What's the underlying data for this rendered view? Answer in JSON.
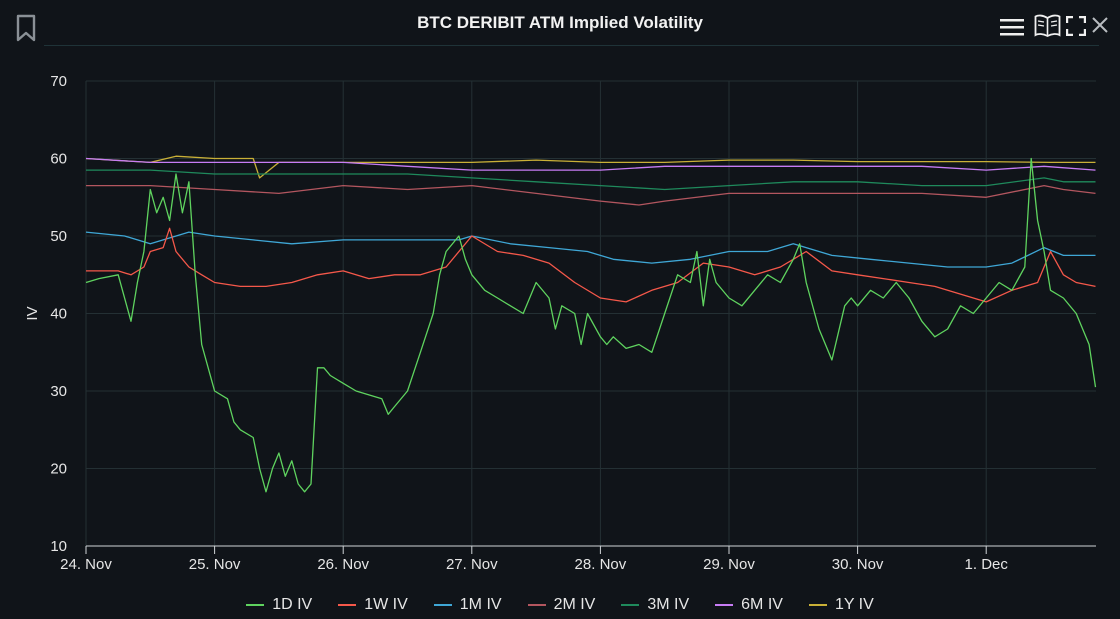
{
  "toolbar": {
    "title": "BTC DERIBIT ATM Implied Volatility",
    "icons": [
      "bookmark-icon",
      "menu-icon",
      "book-icon",
      "fullscreen-icon",
      "close-icon"
    ]
  },
  "chart_data": {
    "type": "line",
    "title": "BTC DERIBIT ATM Implied Volatility",
    "ylabel": "IV",
    "xlabel": "",
    "ylim": [
      10,
      70
    ],
    "yticks": [
      "10",
      "20",
      "30",
      "40",
      "50",
      "60",
      "70"
    ],
    "xlim": [
      0,
      7.85
    ],
    "xticks": [
      {
        "x": 0,
        "label": "24. Nov"
      },
      {
        "x": 1,
        "label": "25. Nov"
      },
      {
        "x": 2,
        "label": "26. Nov"
      },
      {
        "x": 3,
        "label": "27. Nov"
      },
      {
        "x": 4,
        "label": "28. Nov"
      },
      {
        "x": 5,
        "label": "29. Nov"
      },
      {
        "x": 6,
        "label": "30. Nov"
      },
      {
        "x": 7,
        "label": "1. Dec"
      }
    ],
    "grid": true,
    "legend_position": "bottom",
    "series": [
      {
        "name": "1D IV",
        "color": "#5fd35f",
        "x": [
          0,
          0.1,
          0.25,
          0.35,
          0.4,
          0.45,
          0.5,
          0.55,
          0.6,
          0.65,
          0.7,
          0.75,
          0.8,
          0.85,
          0.9,
          1,
          1.1,
          1.15,
          1.2,
          1.3,
          1.35,
          1.4,
          1.45,
          1.5,
          1.55,
          1.6,
          1.65,
          1.7,
          1.75,
          1.8,
          1.85,
          1.9,
          2,
          2.1,
          2.2,
          2.3,
          2.35,
          2.4,
          2.5,
          2.6,
          2.7,
          2.75,
          2.8,
          2.9,
          2.95,
          3,
          3.1,
          3.2,
          3.3,
          3.4,
          3.5,
          3.6,
          3.65,
          3.7,
          3.8,
          3.85,
          3.9,
          4,
          4.05,
          4.1,
          4.2,
          4.3,
          4.4,
          4.5,
          4.6,
          4.7,
          4.75,
          4.8,
          4.85,
          4.9,
          5,
          5.1,
          5.2,
          5.3,
          5.4,
          5.5,
          5.55,
          5.6,
          5.7,
          5.8,
          5.9,
          5.95,
          6,
          6.1,
          6.2,
          6.3,
          6.4,
          6.5,
          6.6,
          6.7,
          6.8,
          6.9,
          7,
          7.1,
          7.2,
          7.3,
          7.35,
          7.4,
          7.45,
          7.5,
          7.6,
          7.7,
          7.8,
          7.85
        ],
        "y": [
          44,
          44.5,
          45,
          39,
          44,
          48,
          56,
          53,
          55,
          52,
          58,
          53,
          57,
          45,
          36,
          30,
          29,
          26,
          25,
          24,
          20,
          17,
          20,
          22,
          19,
          21,
          18,
          17,
          18,
          33,
          33,
          32,
          31,
          30,
          29.5,
          29,
          27,
          28,
          30,
          35,
          40,
          45,
          48,
          50,
          47,
          45,
          43,
          42,
          41,
          40,
          44,
          42,
          38,
          41,
          40,
          36,
          40,
          37,
          36,
          37,
          35.5,
          36,
          35,
          40,
          45,
          44,
          48,
          41,
          47,
          44,
          42,
          41,
          43,
          45,
          44,
          47,
          49,
          44,
          38,
          34,
          41,
          42,
          41,
          43,
          42,
          44,
          42,
          39,
          37,
          38,
          41,
          40,
          42,
          44,
          43,
          46,
          60,
          52,
          48,
          43,
          42,
          40,
          36,
          30.5
        ]
      },
      {
        "name": "1W IV",
        "color": "#f5584a",
        "x": [
          0,
          0.25,
          0.35,
          0.45,
          0.5,
          0.6,
          0.65,
          0.7,
          0.8,
          0.9,
          1,
          1.2,
          1.4,
          1.6,
          1.8,
          2,
          2.2,
          2.4,
          2.6,
          2.8,
          3,
          3.2,
          3.4,
          3.6,
          3.8,
          4,
          4.2,
          4.4,
          4.6,
          4.8,
          5,
          5.2,
          5.4,
          5.5,
          5.6,
          5.8,
          6,
          6.2,
          6.4,
          6.6,
          6.8,
          7,
          7.2,
          7.4,
          7.5,
          7.6,
          7.7,
          7.85
        ],
        "y": [
          45.5,
          45.5,
          45,
          46,
          48,
          48.5,
          51,
          48,
          46,
          45,
          44,
          43.5,
          43.5,
          44,
          45,
          45.5,
          44.5,
          45,
          45,
          46,
          50,
          48,
          47.5,
          46.5,
          44,
          42,
          41.5,
          43,
          44,
          46.5,
          46,
          45,
          46,
          47,
          48,
          45.5,
          45,
          44.5,
          44,
          43.5,
          42.5,
          41.5,
          43,
          44,
          48,
          45,
          44,
          43.5
        ]
      },
      {
        "name": "1M IV",
        "color": "#3fa7d6",
        "x": [
          0,
          0.3,
          0.5,
          0.8,
          1,
          1.3,
          1.6,
          2,
          2.3,
          2.6,
          2.9,
          3,
          3.3,
          3.6,
          3.9,
          4.1,
          4.4,
          4.7,
          5,
          5.3,
          5.5,
          5.8,
          6.1,
          6.4,
          6.7,
          7,
          7.2,
          7.45,
          7.6,
          7.85
        ],
        "y": [
          50.5,
          50,
          49,
          50.5,
          50,
          49.5,
          49,
          49.5,
          49.5,
          49.5,
          49.5,
          50,
          49,
          48.5,
          48,
          47,
          46.5,
          47,
          48,
          48,
          49,
          47.5,
          47,
          46.5,
          46,
          46,
          46.5,
          48.5,
          47.5,
          47.5
        ]
      },
      {
        "name": "2M IV",
        "color": "#b3565f",
        "x": [
          0,
          0.5,
          1,
          1.5,
          2,
          2.5,
          3,
          3.5,
          4,
          4.3,
          4.5,
          5,
          5.5,
          6,
          6.5,
          7,
          7.45,
          7.6,
          7.85
        ],
        "y": [
          56.5,
          56.5,
          56,
          55.5,
          56.5,
          56,
          56.5,
          55.5,
          54.5,
          54,
          54.5,
          55.5,
          55.5,
          55.5,
          55.5,
          55,
          56.5,
          56,
          55.5
        ]
      },
      {
        "name": "3M IV",
        "color": "#1f8a5c",
        "x": [
          0,
          0.5,
          1,
          1.5,
          2,
          2.5,
          3,
          3.5,
          4,
          4.5,
          5,
          5.5,
          6,
          6.5,
          7,
          7.45,
          7.6,
          7.85
        ],
        "y": [
          58.5,
          58.5,
          58,
          58,
          58,
          58,
          57.5,
          57,
          56.5,
          56,
          56.5,
          57,
          57,
          56.5,
          56.5,
          57.5,
          57,
          57
        ]
      },
      {
        "name": "6M IV",
        "color": "#c77cf5",
        "x": [
          0,
          0.5,
          1,
          1.5,
          2,
          2.5,
          3,
          3.5,
          4,
          4.5,
          5,
          5.5,
          6,
          6.5,
          7,
          7.45,
          7.85
        ],
        "y": [
          60,
          59.5,
          59.5,
          59.5,
          59.5,
          59,
          58.5,
          58.5,
          58.5,
          59,
          59,
          59,
          59,
          59,
          58.5,
          59,
          58.5
        ]
      },
      {
        "name": "1Y IV",
        "color": "#c9b037",
        "x": [
          0,
          0.5,
          0.7,
          1,
          1.3,
          1.35,
          1.5,
          2,
          2.5,
          3,
          3.5,
          4,
          4.5,
          5,
          5.5,
          6,
          6.5,
          7,
          7.5,
          7.85
        ],
        "y": [
          60,
          59.5,
          60.3,
          60,
          60,
          57.5,
          59.5,
          59.5,
          59.5,
          59.5,
          59.8,
          59.5,
          59.5,
          59.8,
          59.8,
          59.6,
          59.6,
          59.6,
          59.5,
          59.5
        ]
      }
    ]
  }
}
